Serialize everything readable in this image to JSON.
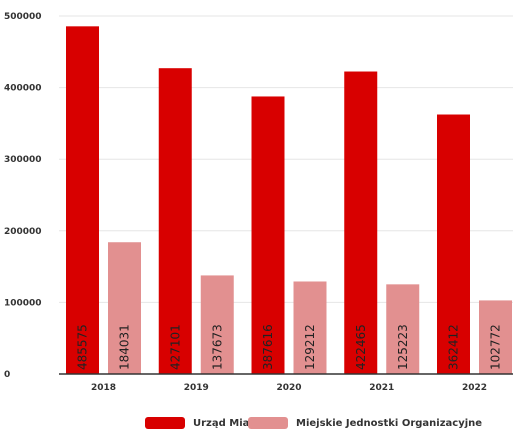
{
  "chart_data": {
    "type": "bar",
    "categories": [
      "2018",
      "2019",
      "2020",
      "2021",
      "2022"
    ],
    "series": [
      {
        "name": "Urząd Miasta",
        "values": [
          485575,
          427101,
          387616,
          422465,
          362412
        ],
        "color": "#d80000"
      },
      {
        "name": "Miejskie Jednostki Organizacyjne",
        "values": [
          184031,
          137673,
          129212,
          125223,
          102772
        ],
        "color": "#e29090"
      }
    ],
    "yticks": [
      "500000",
      "400000",
      "300000",
      "200000",
      "100000",
      "0"
    ],
    "ylim": [
      0,
      500000
    ],
    "grid": true,
    "legend": "bottom",
    "bar_labels": "values rotated vertically inside bars"
  }
}
